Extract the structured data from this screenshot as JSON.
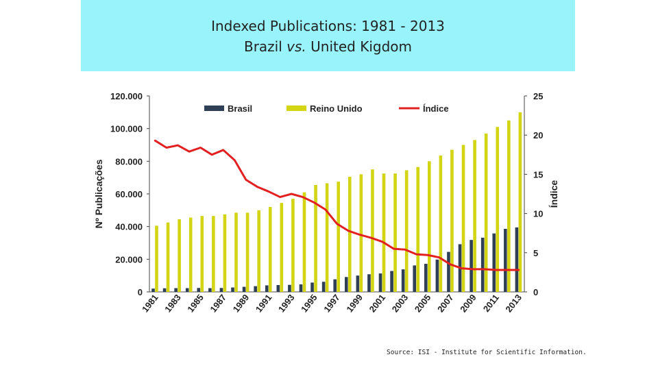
{
  "header": {
    "title_line1": "Indexed Publications: 1981 - 2013",
    "title_line2_prefix": "Brazil ",
    "title_line2_italic": "vs.",
    "title_line2_suffix": " United Kigdom"
  },
  "footer": {
    "source": "Source: ISI - Institute for Scientific Information."
  },
  "colors": {
    "header_bg": "#99f3fb",
    "brasil": "#2f3f55",
    "reino_unido": "#d2d414",
    "indice": "#e32020"
  },
  "chart_data": {
    "type": "bar",
    "categories": [
      "1981",
      "1982",
      "1983",
      "1984",
      "1985",
      "1986",
      "1987",
      "1988",
      "1989",
      "1990",
      "1991",
      "1992",
      "1993",
      "1994",
      "1995",
      "1996",
      "1997",
      "1998",
      "1999",
      "2000",
      "2001",
      "2002",
      "2003",
      "2004",
      "2005",
      "2006",
      "2007",
      "2008",
      "2009",
      "2010",
      "2011",
      "2012",
      "2013"
    ],
    "x_tick_labels": [
      "1981",
      "1983",
      "1985",
      "1987",
      "1989",
      "1991",
      "1993",
      "1995",
      "1997",
      "1999",
      "2001",
      "2003",
      "2005",
      "2007",
      "2009",
      "2011",
      "2013"
    ],
    "ylabel": "Nº Publicações",
    "y2label": "Índice",
    "ylim": [
      0,
      120000
    ],
    "y2lim": [
      0,
      25
    ],
    "y_ticks": [
      "0",
      "20.000",
      "40.000",
      "60.000",
      "80.000",
      "100.000",
      "120.000"
    ],
    "y2_ticks": [
      "0",
      "5",
      "10",
      "15",
      "20",
      "25"
    ],
    "legend_position": "top",
    "series": [
      {
        "name": "Brasil",
        "kind": "bar",
        "values": [
          2000,
          2200,
          2300,
          2300,
          2400,
          2300,
          2400,
          2700,
          3100,
          3500,
          4000,
          4200,
          4300,
          4600,
          5700,
          6200,
          7700,
          9100,
          10000,
          10800,
          11300,
          12800,
          13800,
          16200,
          17200,
          19800,
          24500,
          29200,
          31800,
          33200,
          35800,
          38600,
          39500
        ]
      },
      {
        "name": "Reino Unido",
        "kind": "bar",
        "values": [
          40500,
          42500,
          44500,
          45500,
          46500,
          46500,
          47500,
          48500,
          48500,
          50000,
          52000,
          54500,
          57000,
          61000,
          65500,
          66500,
          67500,
          70500,
          72000,
          75000,
          72500,
          72500,
          74500,
          76500,
          80000,
          83500,
          87000,
          90000,
          93000,
          97000,
          101000,
          105000,
          110000
        ]
      },
      {
        "name": "Índice",
        "kind": "line",
        "axis": "right",
        "values": [
          19.3,
          18.4,
          18.7,
          17.9,
          18.4,
          17.5,
          18.1,
          16.8,
          14.3,
          13.4,
          12.8,
          12.1,
          12.5,
          12.1,
          11.4,
          10.5,
          8.7,
          7.8,
          7.3,
          6.9,
          6.4,
          5.5,
          5.4,
          4.8,
          4.7,
          4.4,
          3.5,
          3.0,
          2.9,
          2.9,
          2.8,
          2.8,
          2.8
        ]
      }
    ]
  }
}
